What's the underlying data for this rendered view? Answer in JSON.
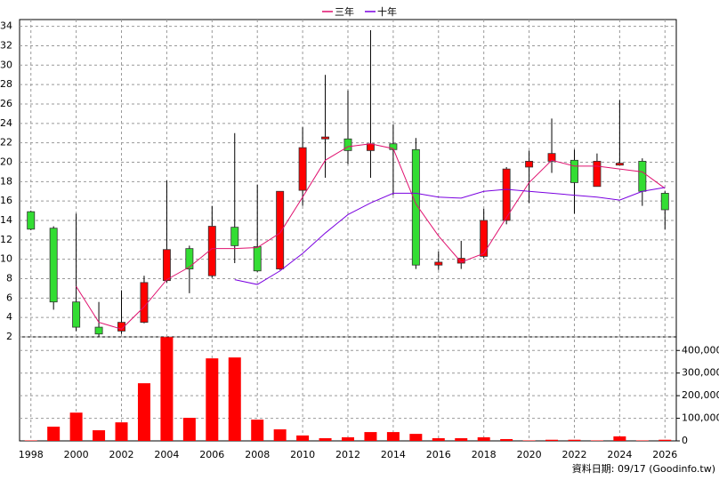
{
  "chart_data": {
    "type": "candlestick",
    "legend": "top",
    "x": [
      1998,
      1999,
      2000,
      2001,
      2002,
      2003,
      2004,
      2005,
      2006,
      2007,
      2008,
      2009,
      2010,
      2011,
      2012,
      2013,
      2014,
      2015,
      2016,
      2017,
      2018,
      2019,
      2020,
      2021,
      2022,
      2023,
      2024,
      2025,
      2026
    ],
    "open": [
      14.9,
      13.2,
      5.6,
      3.0,
      2.6,
      3.5,
      7.8,
      11.1,
      8.3,
      13.3,
      11.3,
      9.0,
      17.1,
      22.4,
      22.4,
      21.2,
      21.9,
      21.3,
      9.4,
      9.6,
      10.3,
      14.0,
      19.5,
      20.1,
      20.2,
      17.5,
      19.7,
      20.1,
      16.8
    ],
    "high": [
      15.0,
      13.4,
      14.7,
      5.6,
      6.8,
      8.3,
      18.1,
      11.4,
      15.5,
      23.0,
      17.7,
      17.0,
      23.6,
      29.0,
      27.4,
      33.6,
      23.9,
      22.5,
      10.8,
      11.9,
      15.2,
      19.5,
      21.2,
      24.5,
      21.3,
      20.9,
      26.4,
      20.4,
      17.0
    ],
    "low": [
      13.0,
      4.8,
      2.6,
      2.0,
      2.3,
      3.4,
      7.6,
      6.5,
      8.1,
      9.6,
      8.7,
      8.9,
      15.5,
      18.4,
      19.8,
      18.4,
      16.6,
      9.0,
      8.9,
      9.0,
      10.1,
      13.6,
      15.8,
      18.9,
      14.7,
      17.5,
      19.7,
      15.5,
      13.1
    ],
    "close": [
      13.1,
      5.6,
      3.0,
      2.3,
      3.5,
      7.6,
      11.0,
      9.0,
      13.4,
      11.4,
      8.8,
      17.0,
      21.5,
      22.6,
      21.2,
      21.9,
      21.3,
      9.4,
      9.7,
      10.1,
      14.0,
      19.3,
      20.1,
      20.9,
      17.9,
      20.1,
      19.9,
      17.0,
      15.1
    ],
    "up_color": "#ff0000",
    "down_color": "#33dd33",
    "lines": [
      {
        "name": "三年",
        "color": "#e0106e",
        "values": [
          null,
          null,
          7.2,
          3.5,
          2.8,
          5.1,
          7.9,
          9.2,
          11.1,
          11.1,
          11.2,
          12.7,
          16.4,
          20.2,
          21.6,
          21.9,
          21.4,
          15.7,
          12.4,
          9.7,
          10.6,
          14.3,
          17.9,
          20.2,
          19.6,
          19.6,
          19.3,
          19.0,
          17.3
        ]
      },
      {
        "name": "十年",
        "color": "#7a00e0",
        "values": [
          null,
          null,
          null,
          null,
          null,
          null,
          null,
          null,
          null,
          7.9,
          7.4,
          8.8,
          10.6,
          12.7,
          14.6,
          15.8,
          16.8,
          16.8,
          16.4,
          16.3,
          17.0,
          17.2,
          17.0,
          16.8,
          16.6,
          16.4,
          16.1,
          17.0,
          17.4
        ]
      }
    ],
    "xlim": [
      1997.5,
      2026.5
    ],
    "xticks": [
      1998,
      2000,
      2002,
      2004,
      2006,
      2008,
      2010,
      2012,
      2014,
      2016,
      2018,
      2020,
      2022,
      2024,
      2026
    ],
    "ylim": [
      2,
      34.7
    ],
    "yticks": [
      2,
      4,
      6,
      8,
      10,
      12,
      14,
      16,
      18,
      20,
      22,
      24,
      26,
      28,
      30,
      32,
      34
    ],
    "grid": true,
    "volume": {
      "color": "#ff0000",
      "values": [
        2000,
        63000,
        125000,
        47000,
        82000,
        255000,
        459000,
        102000,
        365000,
        369000,
        94000,
        51000,
        24000,
        12000,
        16000,
        39000,
        39000,
        31000,
        12000,
        12000,
        16000,
        8000,
        2000,
        5000,
        5000,
        2000,
        20000,
        2000,
        5000
      ],
      "ylim": [
        0,
        460000
      ],
      "yticks": [
        0,
        {
          "value": 100000,
          "label": "100,000"
        },
        {
          "value": 200000,
          "label": "200,000"
        },
        {
          "value": 300000,
          "label": "300,000"
        },
        {
          "value": 400000,
          "label": "400,000"
        }
      ]
    },
    "source": "資料日期: 09/17  (Goodinfo.tw)"
  }
}
